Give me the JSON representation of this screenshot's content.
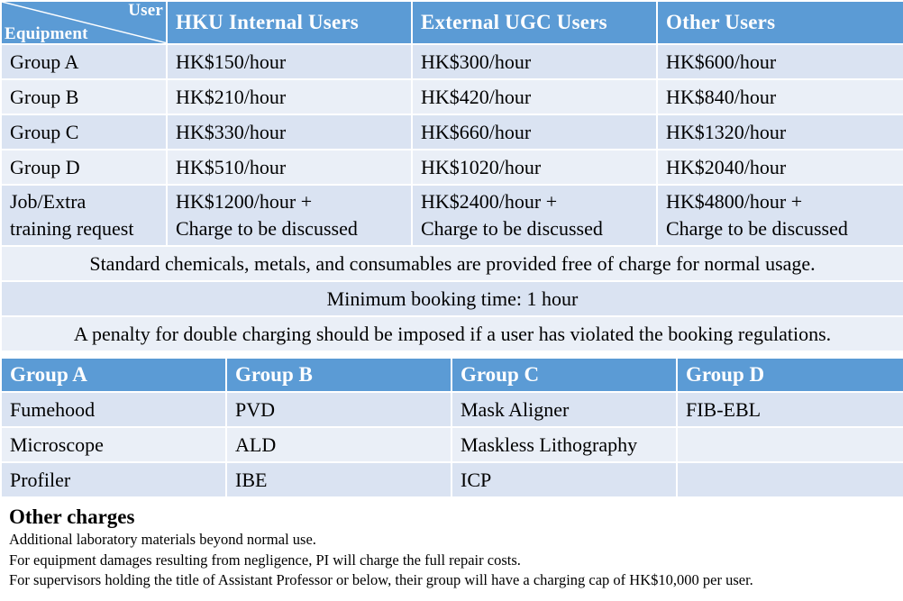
{
  "rates": {
    "corner_user": "User",
    "corner_equipment": "Equipment",
    "headers": [
      "HKU Internal Users",
      "External UGC Users",
      "Other Users"
    ],
    "rows": [
      {
        "group": "Group A",
        "hku": "HK$150/hour",
        "ugc": "HK$300/hour",
        "other": "HK$600/hour"
      },
      {
        "group": "Group B",
        "hku": "HK$210/hour",
        "ugc": "HK$420/hour",
        "other": "HK$840/hour"
      },
      {
        "group": "Group C",
        "hku": "HK$330/hour",
        "ugc": "HK$660/hour",
        "other": "HK$1320/hour"
      },
      {
        "group": "Group D",
        "hku": "HK$510/hour",
        "ugc": "HK$1020/hour",
        "other": "HK$2040/hour"
      }
    ],
    "job_row": {
      "group_line1": "Job/Extra",
      "group_line2": "training request",
      "hku_line1": "HK$1200/hour +",
      "ugc_line1": "HK$2400/hour +",
      "other_line1": "HK$4800/hour +",
      "line2": "Charge to be discussed"
    },
    "notes": [
      "Standard chemicals, metals, and consumables are provided free of charge for normal usage.",
      "Minimum booking time: 1 hour",
      "A penalty for double charging should be imposed if a user has violated the booking regulations."
    ]
  },
  "groups": {
    "headers": [
      "Group A",
      "Group B",
      "Group C",
      "Group D"
    ],
    "rows": [
      [
        "Fumehood",
        "PVD",
        "Mask Aligner",
        "FIB-EBL"
      ],
      [
        "Microscope",
        "ALD",
        "Maskless Lithography",
        ""
      ],
      [
        "Profiler",
        "IBE",
        "ICP",
        ""
      ]
    ]
  },
  "other_charges": {
    "title": "Other charges",
    "lines": [
      "Additional laboratory materials beyond normal use.",
      "For equipment damages resulting from negligence, PI will charge the full repair costs.",
      "For supervisors holding the title of Assistant Professor or below, their group will have a charging cap of HK$10,000 per user."
    ]
  },
  "colors": {
    "header": "#5b9bd5",
    "row_dark": "#dae3f2",
    "row_light": "#eaeff7"
  }
}
